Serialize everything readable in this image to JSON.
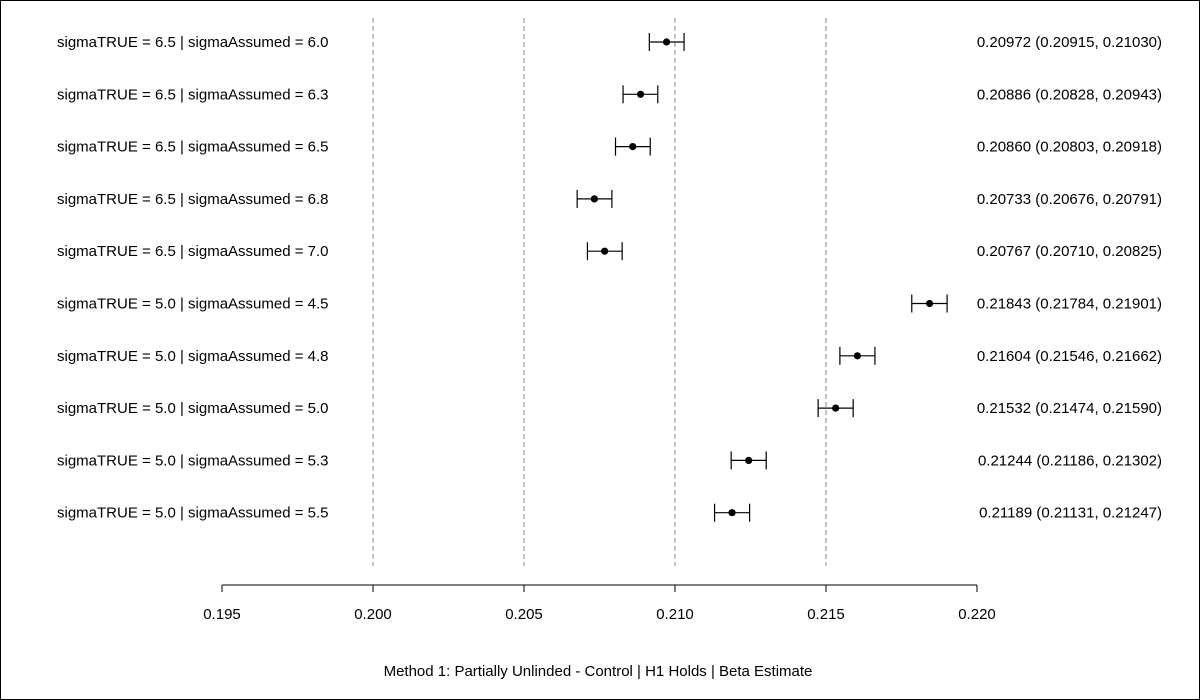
{
  "chart_data": {
    "type": "forest",
    "xlabel": "Method 1: Partially Unlinded - Control | H1 Holds | Beta Estimate",
    "xlim": [
      0.195,
      0.22
    ],
    "xticks": [
      0.195,
      0.2,
      0.205,
      0.21,
      0.215,
      0.22
    ],
    "xtick_labels": [
      "0.195",
      "0.200",
      "0.205",
      "0.210",
      "0.215",
      "0.220"
    ],
    "reference_lines": [
      0.2,
      0.205,
      0.21,
      0.215
    ],
    "rows": [
      {
        "label": "sigmaTRUE = 6.5 | sigmaAssumed = 6.0",
        "estimate": 0.20972,
        "lower": 0.20915,
        "upper": 0.2103,
        "ci_text": "0.20972 (0.20915, 0.21030)"
      },
      {
        "label": "sigmaTRUE = 6.5 | sigmaAssumed = 6.3",
        "estimate": 0.20886,
        "lower": 0.20828,
        "upper": 0.20943,
        "ci_text": "0.20886 (0.20828, 0.20943)"
      },
      {
        "label": "sigmaTRUE = 6.5 | sigmaAssumed = 6.5",
        "estimate": 0.2086,
        "lower": 0.20803,
        "upper": 0.20918,
        "ci_text": "0.20860 (0.20803, 0.20918)"
      },
      {
        "label": "sigmaTRUE = 6.5 | sigmaAssumed = 6.8",
        "estimate": 0.20733,
        "lower": 0.20676,
        "upper": 0.20791,
        "ci_text": "0.20733 (0.20676, 0.20791)"
      },
      {
        "label": "sigmaTRUE = 6.5 | sigmaAssumed = 7.0",
        "estimate": 0.20767,
        "lower": 0.2071,
        "upper": 0.20825,
        "ci_text": "0.20767 (0.20710, 0.20825)"
      },
      {
        "label": "sigmaTRUE = 5.0 | sigmaAssumed = 4.5",
        "estimate": 0.21843,
        "lower": 0.21784,
        "upper": 0.21901,
        "ci_text": "0.21843 (0.21784, 0.21901)"
      },
      {
        "label": "sigmaTRUE = 5.0 | sigmaAssumed = 4.8",
        "estimate": 0.21604,
        "lower": 0.21546,
        "upper": 0.21662,
        "ci_text": "0.21604 (0.21546, 0.21662)"
      },
      {
        "label": "sigmaTRUE = 5.0 | sigmaAssumed = 5.0",
        "estimate": 0.21532,
        "lower": 0.21474,
        "upper": 0.2159,
        "ci_text": "0.21532 (0.21474, 0.21590)"
      },
      {
        "label": "sigmaTRUE = 5.0 | sigmaAssumed = 5.3",
        "estimate": 0.21244,
        "lower": 0.21186,
        "upper": 0.21302,
        "ci_text": "0.21244 (0.21186, 0.21302)"
      },
      {
        "label": "sigmaTRUE = 5.0 | sigmaAssumed = 5.5",
        "estimate": 0.21189,
        "lower": 0.21131,
        "upper": 0.21247,
        "ci_text": "0.21189 (0.21131, 0.21247)"
      }
    ],
    "grid": false,
    "colors": {
      "marks": "#000000",
      "reference_lines": "#888888"
    }
  }
}
